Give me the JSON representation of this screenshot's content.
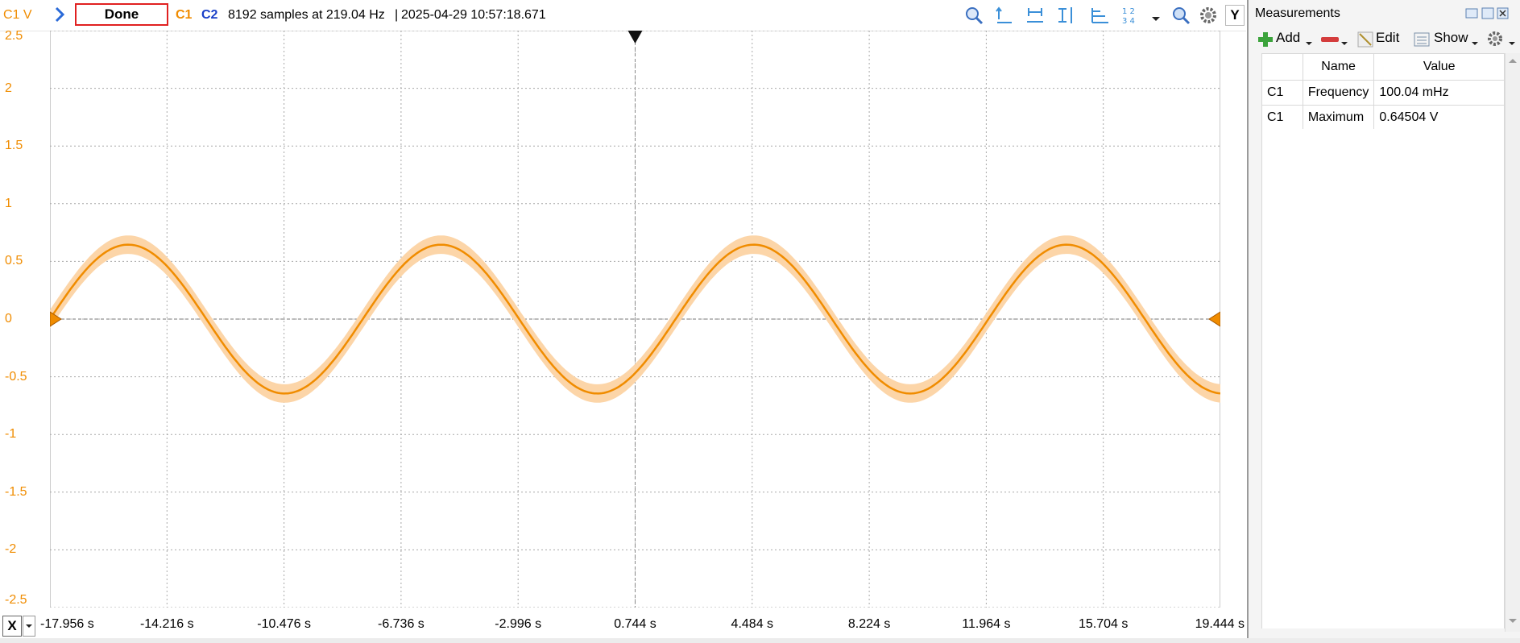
{
  "toolbar": {
    "channel_units": "C1 V",
    "status": "Done",
    "c1_label": "C1",
    "c2_label": "C2",
    "sample_info": "8192 samples at 219.04 Hz",
    "separator": "|",
    "timestamp": "2025-04-29 10:57:18.671",
    "icons": [
      "zoom-icon",
      "cursor-icon",
      "horizontal-cursor-icon",
      "vertical-cursor-icon",
      "edge-cursor-icon",
      "channel-numbers-icon",
      "dropdown-icon",
      "zoom-out-icon",
      "settings-icon"
    ],
    "y_button": "Y"
  },
  "plot": {
    "y_ticks": [
      "2.5",
      "2",
      "1.5",
      "1",
      "0.5",
      "0",
      "-0.5",
      "-1",
      "-1.5",
      "-2",
      "-2.5"
    ],
    "x_button": "X",
    "x_ticks": [
      "-17.956 s",
      "-14.216 s",
      "-10.476 s",
      "-6.736 s",
      "-2.996 s",
      "0.744 s",
      "4.484 s",
      "8.224 s",
      "11.964 s",
      "15.704 s",
      "19.444 s"
    ],
    "colors": {
      "trace": "#f08c00",
      "envelope": "#fcd5a8",
      "grid": "#b0b0b0"
    }
  },
  "chart_data": {
    "type": "line",
    "ylim": [
      -2.5,
      2.5
    ],
    "xlim": [
      -17.956,
      19.444
    ],
    "series": [
      {
        "amplitude": 0.645,
        "frequency_hz": 0.10004,
        "envelope": 0.08
      }
    ]
  },
  "measurements": {
    "title": "Measurements",
    "toolbar": {
      "add": "Add",
      "edit": "Edit",
      "show": "Show"
    },
    "columns": [
      "",
      "Name",
      "Value"
    ],
    "rows": [
      {
        "channel": "C1",
        "name": "Frequency",
        "value": "100.04 mHz"
      },
      {
        "channel": "C1",
        "name": "Maximum",
        "value": "0.64504 V"
      }
    ]
  }
}
